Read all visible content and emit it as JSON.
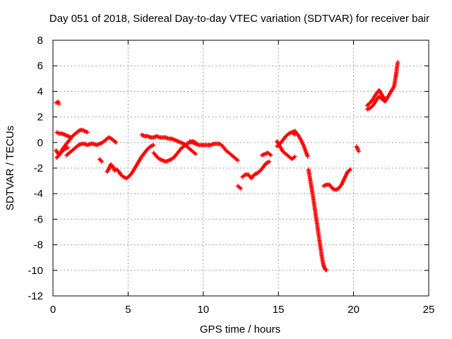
{
  "chart_data": {
    "type": "scatter",
    "title": "Day 051 of 2018, Sidereal Day-to-day VTEC variation (SDTVAR) for receiver bair",
    "xlabel": "GPS time / hours",
    "ylabel": "SDTVAR / TECUs",
    "xlim": [
      0,
      25
    ],
    "ylim": [
      -12,
      8
    ],
    "xticks": [
      0,
      5,
      10,
      15,
      20,
      25
    ],
    "yticks": [
      -12,
      -10,
      -8,
      -6,
      -4,
      -2,
      0,
      2,
      4,
      6,
      8
    ],
    "grid": true,
    "legend": "none",
    "marker": "plus",
    "color": "#ff0000",
    "segments": [
      [
        [
          0.2,
          3.1
        ],
        [
          0.35,
          3.2
        ],
        [
          0.4,
          3.0
        ]
      ],
      [
        [
          0.2,
          -0.6
        ],
        [
          0.35,
          -0.9
        ],
        [
          0.5,
          -0.8
        ],
        [
          0.7,
          -0.4
        ],
        [
          0.9,
          -0.1
        ],
        [
          1.1,
          0.2
        ],
        [
          1.3,
          0.5
        ],
        [
          1.5,
          0.7
        ],
        [
          1.7,
          0.9
        ],
        [
          1.9,
          1.0
        ],
        [
          2.1,
          0.9
        ],
        [
          2.3,
          0.8
        ]
      ],
      [
        [
          0.25,
          0.8
        ],
        [
          0.4,
          0.7
        ],
        [
          0.6,
          0.7
        ],
        [
          0.8,
          0.6
        ],
        [
          1.0,
          0.5
        ],
        [
          1.2,
          0.4
        ]
      ],
      [
        [
          0.25,
          -1.2
        ],
        [
          0.4,
          -1.0
        ],
        [
          0.6,
          -0.7
        ],
        [
          0.8,
          -0.5
        ],
        [
          1.0,
          -0.4
        ]
      ],
      [
        [
          0.9,
          -1.0
        ],
        [
          1.1,
          -0.8
        ],
        [
          1.3,
          -0.6
        ],
        [
          1.5,
          -0.4
        ],
        [
          1.7,
          -0.2
        ],
        [
          1.9,
          -0.1
        ],
        [
          2.1,
          -0.1
        ],
        [
          2.3,
          -0.2
        ],
        [
          2.5,
          -0.1
        ],
        [
          2.7,
          -0.1
        ],
        [
          2.9,
          -0.2
        ],
        [
          3.1,
          -0.1
        ],
        [
          3.3,
          0.0
        ],
        [
          3.5,
          0.2
        ],
        [
          3.7,
          0.4
        ],
        [
          3.9,
          0.3
        ],
        [
          4.1,
          0.1
        ],
        [
          4.2,
          0.0
        ]
      ],
      [
        [
          3.1,
          -1.3
        ],
        [
          3.25,
          -1.5
        ]
      ],
      [
        [
          3.6,
          -2.3
        ],
        [
          3.75,
          -2.0
        ],
        [
          3.85,
          -1.7
        ],
        [
          4.0,
          -1.9
        ],
        [
          4.1,
          -2.2
        ],
        [
          4.25,
          -2.1
        ],
        [
          4.4,
          -2.3
        ],
        [
          4.5,
          -2.5
        ],
        [
          4.7,
          -2.7
        ],
        [
          4.9,
          -2.8
        ],
        [
          5.1,
          -2.6
        ],
        [
          5.3,
          -2.3
        ],
        [
          5.5,
          -1.9
        ],
        [
          5.7,
          -1.5
        ],
        [
          5.9,
          -1.1
        ],
        [
          6.1,
          -0.8
        ],
        [
          6.3,
          -0.5
        ],
        [
          6.5,
          -0.3
        ],
        [
          6.7,
          -0.2
        ]
      ],
      [
        [
          5.9,
          0.6
        ],
        [
          6.1,
          0.5
        ],
        [
          6.3,
          0.5
        ],
        [
          6.5,
          0.4
        ],
        [
          6.7,
          0.4
        ],
        [
          6.9,
          0.5
        ],
        [
          7.1,
          0.4
        ],
        [
          7.3,
          0.4
        ],
        [
          7.5,
          0.4
        ],
        [
          7.7,
          0.3
        ],
        [
          7.9,
          0.3
        ],
        [
          8.1,
          0.2
        ],
        [
          8.3,
          0.1
        ],
        [
          8.5,
          0.0
        ],
        [
          8.7,
          -0.1
        ],
        [
          8.9,
          -0.3
        ],
        [
          9.1,
          -0.5
        ],
        [
          9.3,
          -0.7
        ],
        [
          9.5,
          -0.9
        ]
      ],
      [
        [
          6.7,
          -0.8
        ],
        [
          6.9,
          -1.1
        ],
        [
          7.1,
          -1.3
        ],
        [
          7.3,
          -1.4
        ],
        [
          7.5,
          -1.5
        ],
        [
          7.7,
          -1.4
        ],
        [
          7.9,
          -1.3
        ],
        [
          8.1,
          -1.1
        ],
        [
          8.3,
          -0.8
        ],
        [
          8.5,
          -0.5
        ],
        [
          8.7,
          -0.3
        ],
        [
          8.9,
          -0.1
        ],
        [
          9.1,
          0.0
        ],
        [
          9.3,
          0.1
        ],
        [
          9.5,
          0.0
        ]
      ],
      [
        [
          9.1,
          0.1
        ],
        [
          9.3,
          0.0
        ],
        [
          9.5,
          -0.1
        ],
        [
          9.7,
          -0.2
        ],
        [
          9.9,
          -0.2
        ],
        [
          10.1,
          -0.2
        ],
        [
          10.3,
          -0.2
        ],
        [
          10.5,
          -0.2
        ],
        [
          10.7,
          -0.1
        ],
        [
          10.9,
          -0.1
        ],
        [
          11.1,
          -0.1
        ],
        [
          11.3,
          -0.3
        ],
        [
          11.5,
          -0.6
        ],
        [
          11.7,
          -0.8
        ],
        [
          11.9,
          -1.0
        ],
        [
          12.1,
          -1.2
        ],
        [
          12.3,
          -1.4
        ]
      ],
      [
        [
          12.3,
          -3.4
        ],
        [
          12.5,
          -3.6
        ]
      ],
      [
        [
          12.6,
          -2.7
        ],
        [
          12.8,
          -2.5
        ],
        [
          13.0,
          -2.5
        ],
        [
          13.2,
          -2.8
        ],
        [
          13.4,
          -2.5
        ],
        [
          13.6,
          -2.4
        ],
        [
          13.8,
          -2.2
        ],
        [
          14.0,
          -1.9
        ],
        [
          14.2,
          -1.6
        ],
        [
          14.4,
          -1.5
        ]
      ],
      [
        [
          13.9,
          -1.0
        ],
        [
          14.1,
          -0.9
        ],
        [
          14.3,
          -0.8
        ],
        [
          14.5,
          -1.0
        ]
      ],
      [
        [
          14.9,
          0.1
        ],
        [
          15.1,
          -0.3
        ],
        [
          15.3,
          -0.7
        ],
        [
          15.5,
          -0.9
        ],
        [
          15.7,
          -1.1
        ],
        [
          15.9,
          -1.3
        ],
        [
          16.1,
          -1.1
        ]
      ],
      [
        [
          14.9,
          -0.3
        ],
        [
          15.1,
          -0.1
        ],
        [
          15.3,
          0.2
        ],
        [
          15.5,
          0.5
        ],
        [
          15.7,
          0.7
        ],
        [
          15.9,
          0.8
        ],
        [
          16.1,
          0.6
        ]
      ],
      [
        [
          15.9,
          0.8
        ],
        [
          16.1,
          0.9
        ],
        [
          16.3,
          0.6
        ],
        [
          16.5,
          0.2
        ],
        [
          16.7,
          -0.3
        ],
        [
          16.85,
          -0.8
        ],
        [
          16.95,
          -1.1
        ]
      ],
      [
        [
          17.0,
          -2.1
        ],
        [
          17.1,
          -2.8
        ],
        [
          17.2,
          -3.5
        ],
        [
          17.3,
          -4.2
        ],
        [
          17.4,
          -5.0
        ],
        [
          17.5,
          -5.8
        ],
        [
          17.6,
          -6.6
        ],
        [
          17.7,
          -7.4
        ],
        [
          17.8,
          -8.2
        ],
        [
          17.9,
          -9.0
        ],
        [
          18.0,
          -9.6
        ],
        [
          18.1,
          -9.9
        ],
        [
          18.2,
          -10.0
        ]
      ],
      [
        [
          18.0,
          -3.4
        ],
        [
          18.2,
          -3.3
        ],
        [
          18.4,
          -3.3
        ],
        [
          18.6,
          -3.6
        ],
        [
          18.8,
          -3.7
        ],
        [
          19.0,
          -3.6
        ],
        [
          19.2,
          -3.3
        ],
        [
          19.4,
          -2.8
        ],
        [
          19.6,
          -2.3
        ],
        [
          19.8,
          -2.1
        ]
      ],
      [
        [
          20.2,
          -0.3
        ],
        [
          20.3,
          -0.6
        ],
        [
          20.35,
          -0.7
        ]
      ],
      [
        [
          20.9,
          2.6
        ],
        [
          21.1,
          2.7
        ],
        [
          21.3,
          2.9
        ],
        [
          21.5,
          3.3
        ],
        [
          21.7,
          3.6
        ],
        [
          21.9,
          3.4
        ],
        [
          22.1,
          3.2
        ],
        [
          22.3,
          3.6
        ],
        [
          22.5,
          4.0
        ],
        [
          22.7,
          4.4
        ],
        [
          22.8,
          5.1
        ],
        [
          22.85,
          5.5
        ],
        [
          22.9,
          6.0
        ],
        [
          22.95,
          6.3
        ]
      ],
      [
        [
          20.9,
          2.9
        ],
        [
          21.1,
          3.1
        ],
        [
          21.3,
          3.4
        ],
        [
          21.5,
          3.8
        ],
        [
          21.7,
          4.1
        ],
        [
          21.9,
          3.7
        ],
        [
          22.1,
          3.4
        ]
      ]
    ]
  }
}
